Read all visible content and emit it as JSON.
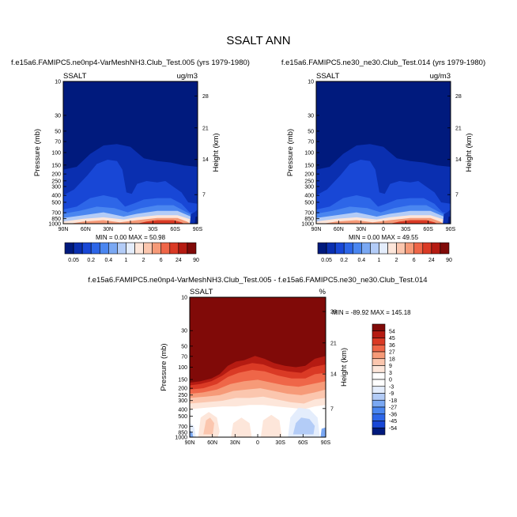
{
  "figure": {
    "title": "SSALT ANN"
  },
  "chart_data": [
    {
      "type": "heatmap",
      "title": "f.e15a6.FAMIPC5.ne0np4-VarMeshNH3.Club_Test.005 (yrs 1979-1980)",
      "variable": "SSALT",
      "units": "ug/m3",
      "ylabel": "Pressure (mb)",
      "ylabel_right": "Height (km)",
      "x_ticks": [
        "90N",
        "60N",
        "30N",
        "0",
        "30S",
        "60S",
        "90S"
      ],
      "y_ticks": [
        "10",
        "30",
        "50",
        "70",
        "100",
        "150",
        "200",
        "250",
        "300",
        "400",
        "500",
        "700",
        "850",
        "1000"
      ],
      "height_ticks": [
        "28",
        "21",
        "14",
        "7"
      ],
      "y_scale": "log",
      "ylim": [
        1000,
        10
      ],
      "xlim": [
        "90N",
        "90S"
      ],
      "stats": "MIN =   0.00  MAX =  50.98",
      "min": 0.0,
      "max": 50.98,
      "colorbar": {
        "placement": "bottom",
        "labels": [
          "0.05",
          "0.2",
          "0.4",
          "1",
          "2",
          "6",
          "24",
          "90"
        ],
        "colors": [
          "#001a7d",
          "#0a2fb0",
          "#1847d6",
          "#2d66e8",
          "#4a86f0",
          "#7aa8f3",
          "#b3ccf7",
          "#e4edfc",
          "#fde6da",
          "#fbc6ae",
          "#f69a78",
          "#ef6648",
          "#da3a25",
          "#b51b12",
          "#800a08"
        ]
      }
    },
    {
      "type": "heatmap",
      "title": "f.e15a6.FAMIPC5.ne30_ne30.Club_Test.014 (yrs 1979-1980)",
      "variable": "SSALT",
      "units": "ug/m3",
      "ylabel": "Pressure (mb)",
      "ylabel_right": "Height (km)",
      "x_ticks": [
        "90N",
        "60N",
        "30N",
        "0",
        "30S",
        "60S",
        "90S"
      ],
      "y_ticks": [
        "10",
        "30",
        "50",
        "70",
        "100",
        "150",
        "200",
        "250",
        "300",
        "400",
        "500",
        "700",
        "850",
        "1000"
      ],
      "height_ticks": [
        "28",
        "21",
        "14",
        "7"
      ],
      "y_scale": "log",
      "ylim": [
        1000,
        10
      ],
      "xlim": [
        "90N",
        "90S"
      ],
      "stats": "MIN =   0.00  MAX =  49.55",
      "min": 0.0,
      "max": 49.55,
      "colorbar": {
        "placement": "bottom",
        "labels": [
          "0.05",
          "0.2",
          "0.4",
          "1",
          "2",
          "6",
          "24",
          "90"
        ],
        "colors": [
          "#001a7d",
          "#0a2fb0",
          "#1847d6",
          "#2d66e8",
          "#4a86f0",
          "#7aa8f3",
          "#b3ccf7",
          "#e4edfc",
          "#fde6da",
          "#fbc6ae",
          "#f69a78",
          "#ef6648",
          "#da3a25",
          "#b51b12",
          "#800a08"
        ]
      }
    },
    {
      "type": "heatmap",
      "title": "f.e15a6.FAMIPC5.ne0np4-VarMeshNH3.Club_Test.005 - f.e15a6.FAMIPC5.ne30_ne30.Club_Test.014",
      "variable": "SSALT",
      "units": "%",
      "ylabel": "Pressure (mb)",
      "ylabel_right": "Height (km)",
      "x_ticks": [
        "90N",
        "60N",
        "30N",
        "0",
        "30S",
        "60S",
        "90S"
      ],
      "y_ticks": [
        "10",
        "30",
        "50",
        "70",
        "100",
        "150",
        "200",
        "250",
        "300",
        "400",
        "500",
        "700",
        "850",
        "1000"
      ],
      "height_ticks": [
        "28",
        "21",
        "14",
        "7"
      ],
      "y_scale": "log",
      "ylim": [
        1000,
        10
      ],
      "xlim": [
        "90N",
        "90S"
      ],
      "stats": "MIN = -89.92  MAX = 145.18",
      "min": -89.92,
      "max": 145.18,
      "colorbar": {
        "placement": "right",
        "labels": [
          "54",
          "45",
          "36",
          "27",
          "18",
          "9",
          "3",
          "0",
          "-3",
          "-9",
          "-18",
          "-27",
          "-36",
          "-45",
          "-54"
        ],
        "colors": [
          "#800a08",
          "#b51b12",
          "#da3a25",
          "#ef6648",
          "#f69a78",
          "#fbc6ae",
          "#fde6da",
          "#ffffff",
          "#ffffff",
          "#e4edfc",
          "#b3ccf7",
          "#7aa8f3",
          "#4a86f0",
          "#2d66e8",
          "#1847d6",
          "#001a7d"
        ]
      }
    }
  ]
}
